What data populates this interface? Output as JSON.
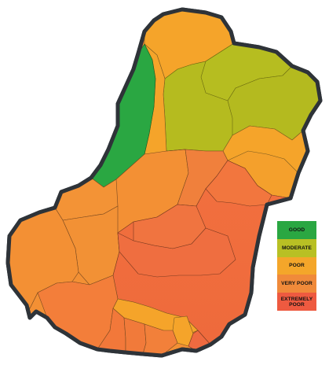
{
  "legend": {
    "items": [
      {
        "label": "GOOD",
        "color": "#2aa742"
      },
      {
        "label": "MODERATE",
        "color": "#b8c024"
      },
      {
        "label": "POOR",
        "color": "#f4a62a"
      },
      {
        "label": "VERY POOR",
        "color": "#f08a3a"
      },
      {
        "label": "EXTREMELY POOR",
        "color": "#ee5a40"
      }
    ]
  },
  "colors": {
    "good": "#2aa742",
    "moderate": "#b5bb1f",
    "poor": "#f5a42a",
    "very_poor": "#f39034",
    "extremely_poor": "#ef6a40",
    "outline": "#2e3338"
  }
}
